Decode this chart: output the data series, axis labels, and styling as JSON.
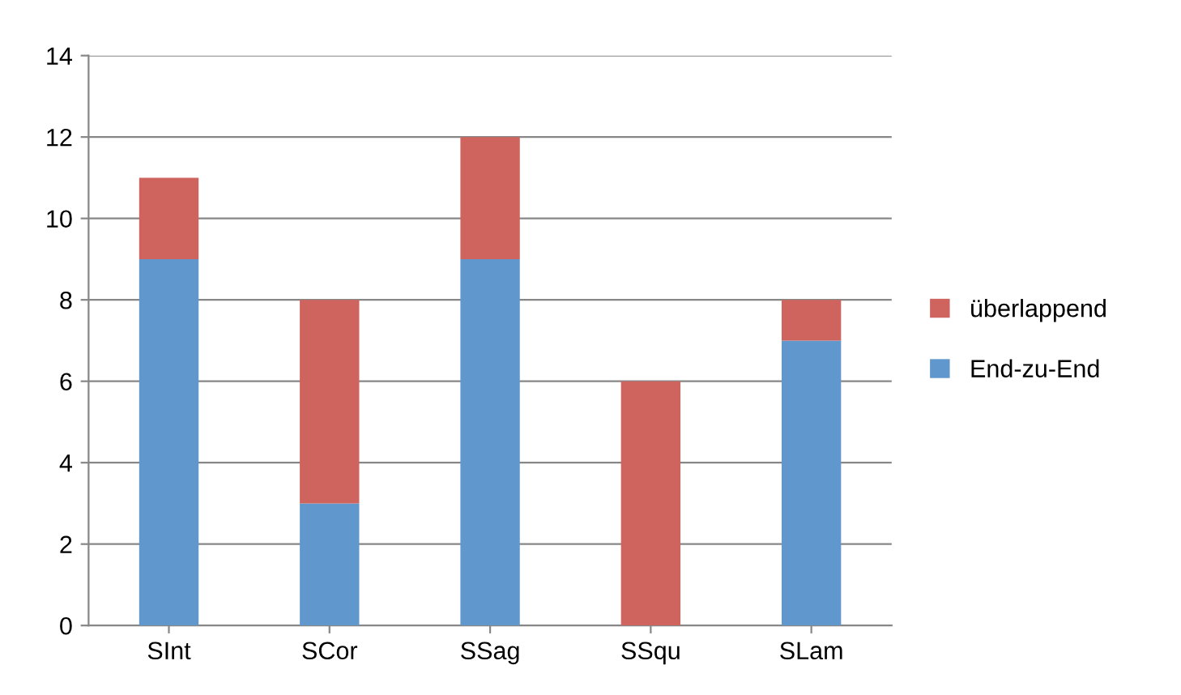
{
  "chart_data": {
    "type": "bar",
    "stacked": true,
    "categories": [
      "SInt",
      "SCor",
      "SSag",
      "SSqu",
      "SLam"
    ],
    "series": [
      {
        "name": "End-zu-End",
        "color": "#6097cc",
        "values": [
          9,
          3,
          9,
          0,
          7
        ]
      },
      {
        "name": "überlappend",
        "color": "#cf635d",
        "values": [
          2,
          5,
          3,
          6,
          1
        ]
      }
    ],
    "ylim": [
      0,
      14
    ],
    "yticks": [
      0,
      2,
      4,
      6,
      8,
      10,
      12,
      14
    ],
    "grid": "y",
    "legend": "right"
  }
}
